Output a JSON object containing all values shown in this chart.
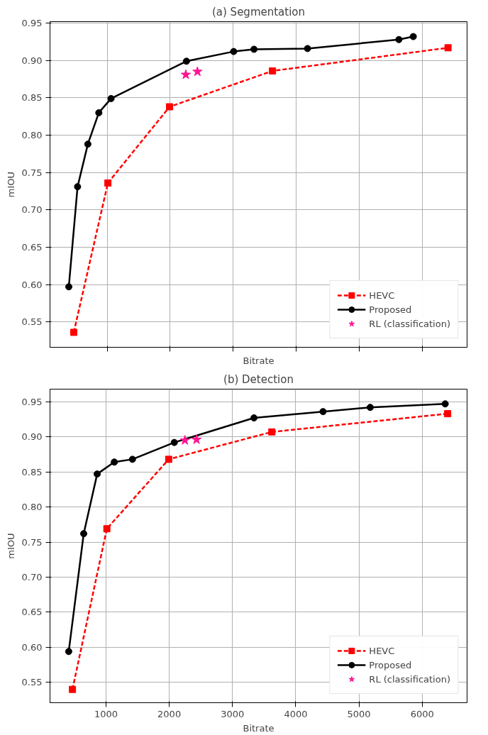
{
  "chart_data": [
    {
      "type": "line",
      "title": "(a) Segmentation",
      "xlabel": "Bitrate",
      "ylabel": "mIOU",
      "xlim": [
        94,
        6706
      ],
      "ylim": [
        0.516,
        0.952
      ],
      "xticks": [
        1000,
        2000,
        3000,
        4000,
        5000,
        6000
      ],
      "yticks": [
        {
          "value": 0.55,
          "label": "0.55"
        },
        {
          "value": 0.6,
          "label": "0.60"
        },
        {
          "value": 0.65,
          "label": "0.65"
        },
        {
          "value": 0.7,
          "label": "0.70"
        },
        {
          "value": 0.75,
          "label": "0.75"
        },
        {
          "value": 0.8,
          "label": "0.80"
        },
        {
          "value": 0.85,
          "label": "0.85"
        },
        {
          "value": 0.9,
          "label": "0.90"
        },
        {
          "value": 0.95,
          "label": "0.95"
        }
      ],
      "tick_labels": "y",
      "grid": true,
      "legend": "bottom right",
      "series": [
        {
          "name": "HEVC",
          "color": "#ff0000",
          "marker": "square",
          "line_style": "dashed",
          "x": [
            471,
            1012,
            1989,
            3621,
            6404
          ],
          "values": [
            0.536,
            0.736,
            0.838,
            0.886,
            0.917
          ]
        },
        {
          "name": "Proposed",
          "color": "#000000",
          "marker": "circle",
          "line_style": "solid",
          "x": [
            392,
            531,
            694,
            868,
            1062,
            2257,
            3006,
            3328,
            4177,
            5625,
            5853
          ],
          "values": [
            0.597,
            0.731,
            0.788,
            0.83,
            0.849,
            0.899,
            0.912,
            0.915,
            0.916,
            0.928,
            0.932
          ]
        },
        {
          "name": "RL (classification)",
          "type": "scatter",
          "color": "#ff1493",
          "marker": "star",
          "x": [
            2247,
            2431
          ],
          "values": [
            0.881,
            0.885
          ]
        }
      ]
    },
    {
      "type": "line",
      "title": "(b) Detection",
      "xlabel": "Bitrate",
      "ylabel": "mIOU",
      "xlim": [
        114,
        6710
      ],
      "ylim": [
        0.521,
        0.968
      ],
      "xticks": [
        1000,
        2000,
        3000,
        4000,
        5000,
        6000
      ],
      "yticks": [
        {
          "value": 0.55,
          "label": "0.55"
        },
        {
          "value": 0.6,
          "label": "0.60"
        },
        {
          "value": 0.65,
          "label": "0.65"
        },
        {
          "value": 0.7,
          "label": "0.70"
        },
        {
          "value": 0.75,
          "label": "0.75"
        },
        {
          "value": 0.8,
          "label": "0.80"
        },
        {
          "value": 0.85,
          "label": "0.85"
        },
        {
          "value": 0.9,
          "label": "0.90"
        },
        {
          "value": 0.95,
          "label": "0.95"
        }
      ],
      "grid": true,
      "legend": "bottom right",
      "series": [
        {
          "name": "HEVC",
          "color": "#ff0000",
          "marker": "square",
          "line_style": "dashed",
          "x": [
            469,
            1013,
            1991,
            3622,
            6403
          ],
          "values": [
            0.54,
            0.769,
            0.868,
            0.907,
            0.933
          ]
        },
        {
          "name": "Proposed",
          "color": "#000000",
          "marker": "circle",
          "line_style": "solid",
          "x": [
            410,
            647,
            860,
            1131,
            1418,
            2080,
            3340,
            4432,
            5178,
            6364
          ],
          "values": [
            0.594,
            0.762,
            0.847,
            0.864,
            0.868,
            0.892,
            0.927,
            0.936,
            0.942,
            0.947
          ]
        },
        {
          "name": "RL (classification)",
          "type": "scatter",
          "color": "#ff1493",
          "marker": "star",
          "x": [
            2248,
            2431
          ],
          "values": [
            0.895,
            0.896
          ]
        }
      ]
    }
  ]
}
